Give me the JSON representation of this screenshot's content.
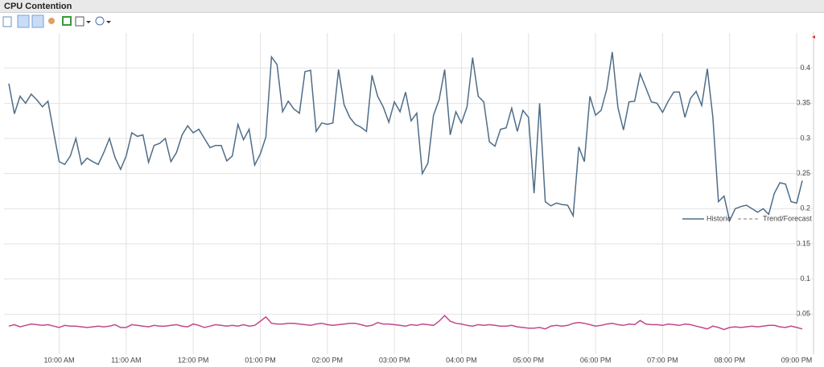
{
  "chart_data": {
    "type": "line",
    "title": "CPU Contention",
    "categories": [
      null,
      null,
      null,
      null,
      null,
      null,
      null,
      null,
      null,
      "10:00 AM",
      null,
      null,
      null,
      null,
      null,
      null,
      null,
      null,
      null,
      null,
      null,
      "11:00 AM",
      null,
      null,
      null,
      null,
      null,
      null,
      null,
      null,
      null,
      null,
      null,
      "12:00 PM",
      null,
      null,
      null,
      null,
      null,
      null,
      null,
      null,
      null,
      null,
      null,
      "01:00 PM",
      null,
      null,
      null,
      null,
      null,
      null,
      null,
      null,
      null,
      null,
      null,
      "02:00 PM",
      null,
      null,
      null,
      null,
      null,
      null,
      null,
      null,
      null,
      null,
      null,
      "03:00 PM",
      null,
      null,
      null,
      null,
      null,
      null,
      null,
      null,
      null,
      null,
      null,
      "04:00 PM",
      null,
      null,
      null,
      null,
      null,
      null,
      null,
      null,
      null,
      null,
      null,
      "05:00 PM",
      null,
      null,
      null,
      null,
      null,
      null,
      null,
      null,
      null,
      null,
      null,
      "06:00 PM",
      null,
      null,
      null,
      null,
      null,
      null,
      null,
      null,
      null,
      null,
      null,
      "07:00 PM",
      null,
      null,
      null,
      null,
      null,
      null,
      null,
      null,
      null,
      null,
      null,
      "08:00 PM",
      null,
      null,
      null,
      null,
      null,
      null,
      null,
      null,
      null,
      null,
      null,
      "09:00 PM",
      null
    ],
    "series": [
      {
        "name": "Historic",
        "color": "#4f6d88",
        "values": [
          0.378,
          0.335,
          0.36,
          0.35,
          0.363,
          0.355,
          0.345,
          0.353,
          0.31,
          0.267,
          0.263,
          0.275,
          0.3,
          0.263,
          0.272,
          0.267,
          0.263,
          0.28,
          0.3,
          0.273,
          0.256,
          0.275,
          0.308,
          0.303,
          0.305,
          0.266,
          0.29,
          0.293,
          0.3,
          0.267,
          0.28,
          0.305,
          0.318,
          0.308,
          0.313,
          0.3,
          0.287,
          0.29,
          0.29,
          0.268,
          0.275,
          0.32,
          0.298,
          0.313,
          0.262,
          0.278,
          0.302,
          0.416,
          0.405,
          0.338,
          0.353,
          0.342,
          0.336,
          0.395,
          0.397,
          0.31,
          0.322,
          0.32,
          0.322,
          0.398,
          0.348,
          0.33,
          0.32,
          0.316,
          0.31,
          0.39,
          0.36,
          0.345,
          0.323,
          0.352,
          0.338,
          0.366,
          0.325,
          0.336,
          0.25,
          0.265,
          0.333,
          0.355,
          0.398,
          0.305,
          0.338,
          0.322,
          0.345,
          0.415,
          0.36,
          0.352,
          0.295,
          0.289,
          0.313,
          0.315,
          0.343,
          0.31,
          0.34,
          0.33,
          0.222,
          0.35,
          0.21,
          0.204,
          0.208,
          0.206,
          0.205,
          0.19,
          0.288,
          0.267,
          0.36,
          0.333,
          0.34,
          0.37,
          0.423,
          0.344,
          0.312,
          0.352,
          0.353,
          0.392,
          0.372,
          0.352,
          0.35,
          0.337,
          0.353,
          0.366,
          0.366,
          0.33,
          0.357,
          0.367,
          0.347,
          0.399,
          0.33,
          0.21,
          0.218,
          0.183,
          0.2,
          0.203,
          0.205,
          0.2,
          0.195,
          0.2,
          0.192,
          0.222,
          0.237,
          0.235,
          0.21,
          0.208,
          0.24
        ]
      },
      {
        "color": "#c2478a",
        "values": [
          0.033,
          0.035,
          0.032,
          0.034,
          0.036,
          0.035,
          0.034,
          0.035,
          0.033,
          0.031,
          0.034,
          0.033,
          0.033,
          0.032,
          0.031,
          0.032,
          0.033,
          0.032,
          0.033,
          0.035,
          0.031,
          0.031,
          0.035,
          0.034,
          0.033,
          0.032,
          0.034,
          0.033,
          0.033,
          0.034,
          0.035,
          0.033,
          0.032,
          0.036,
          0.034,
          0.031,
          0.033,
          0.035,
          0.034,
          0.033,
          0.034,
          0.033,
          0.035,
          0.033,
          0.034,
          0.04,
          0.046,
          0.037,
          0.036,
          0.036,
          0.037,
          0.037,
          0.036,
          0.035,
          0.034,
          0.036,
          0.037,
          0.035,
          0.034,
          0.035,
          0.036,
          0.037,
          0.037,
          0.035,
          0.033,
          0.034,
          0.038,
          0.036,
          0.036,
          0.035,
          0.034,
          0.033,
          0.035,
          0.034,
          0.036,
          0.035,
          0.034,
          0.04,
          0.048,
          0.04,
          0.037,
          0.036,
          0.034,
          0.033,
          0.035,
          0.034,
          0.035,
          0.034,
          0.033,
          0.033,
          0.034,
          0.032,
          0.031,
          0.03,
          0.03,
          0.031,
          0.029,
          0.033,
          0.034,
          0.033,
          0.034,
          0.037,
          0.038,
          0.037,
          0.035,
          0.033,
          0.034,
          0.036,
          0.037,
          0.035,
          0.034,
          0.036,
          0.035,
          0.041,
          0.036,
          0.035,
          0.035,
          0.034,
          0.036,
          0.035,
          0.034,
          0.036,
          0.035,
          0.033,
          0.031,
          0.029,
          0.033,
          0.031,
          0.028,
          0.031,
          0.032,
          0.031,
          0.032,
          0.033,
          0.032,
          0.033,
          0.034,
          0.034,
          0.032,
          0.031,
          0.033,
          0.031,
          0.029
        ]
      }
    ],
    "forecast_legend": "Trend/Forecast",
    "forecast_color": "#999999",
    "ylim": [
      0,
      0.45
    ],
    "yticks": [
      0.05,
      0.1,
      0.15,
      0.2,
      0.25,
      0.3,
      0.35,
      0.4
    ],
    "grid": true
  }
}
